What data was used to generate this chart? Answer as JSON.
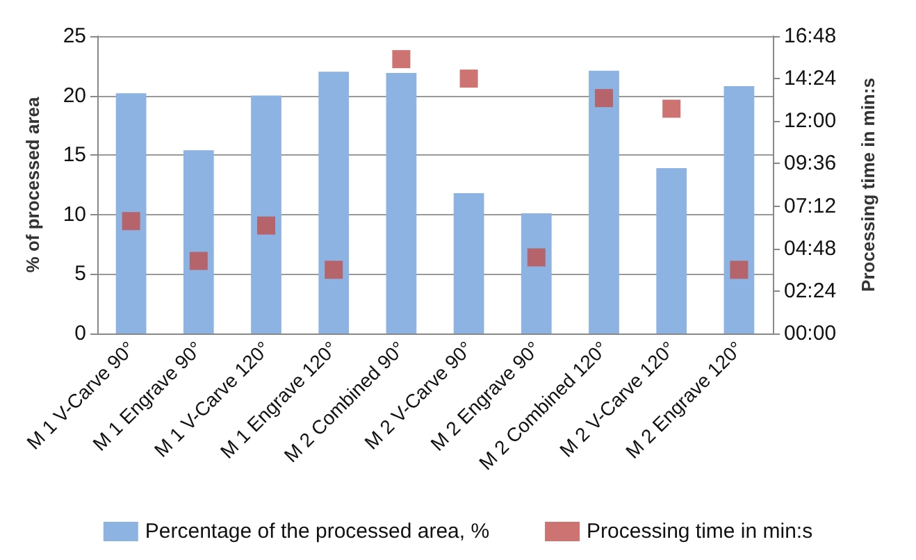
{
  "chart_data": {
    "type": "bar",
    "categories": [
      "M 1 V-Carve 90°",
      "M 1 Engrave 90°",
      "M 1 V-Carve 120°",
      "M 1 Engrave 120°",
      "M 2 Combined 90°",
      "M 2 V-Carve 90°",
      "M 2 Engrave 90°",
      "M 2 Combined 120°",
      "M 2 V-Carve 120°",
      "M 2 Engrave 120°"
    ],
    "series": [
      {
        "name": "Percentage of the processed area, %",
        "color": "#8db3e2",
        "values": [
          20.2,
          15.4,
          20.0,
          22.0,
          21.9,
          11.8,
          10.1,
          22.1,
          13.9,
          20.8
        ]
      },
      {
        "name": "Processing time in min:s",
        "type": "scatter",
        "axis": "y2",
        "color": "#c0504d",
        "values": [
          6.35,
          4.1,
          6.1,
          3.6,
          15.5,
          14.4,
          4.3,
          13.3,
          12.7,
          3.6
        ]
      }
    ],
    "ylabel": "% of processed area",
    "y2label": "Processing time in min:s",
    "ylim": [
      0,
      25
    ],
    "yticks": [
      0,
      5,
      10,
      15,
      20,
      25
    ],
    "y2lim": [
      0,
      16.8
    ],
    "y2ticks": [
      {
        "value": 0,
        "label": "00:00"
      },
      {
        "value": 2.4,
        "label": "02:24"
      },
      {
        "value": 4.8,
        "label": "04:48"
      },
      {
        "value": 7.2,
        "label": "07:12"
      },
      {
        "value": 9.6,
        "label": "09:36"
      },
      {
        "value": 12,
        "label": "12:00"
      },
      {
        "value": 14.4,
        "label": "14:24"
      },
      {
        "value": 16.8,
        "label": "16:48"
      }
    ],
    "grid": "y",
    "legend": "bottom",
    "marker": "square"
  }
}
